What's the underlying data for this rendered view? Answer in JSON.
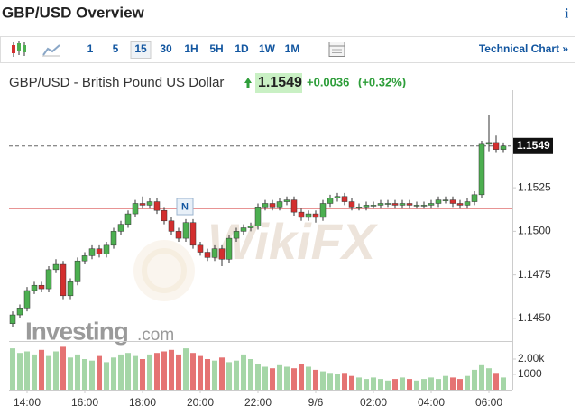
{
  "header": {
    "title": "GBP/USD Overview",
    "info": "i"
  },
  "toolbar": {
    "intervals": [
      "1",
      "5",
      "15",
      "30",
      "1H",
      "5H",
      "1D",
      "1W",
      "1M"
    ],
    "selected": "15",
    "link": "Technical Chart »"
  },
  "quote": {
    "name": "GBP/USD - British Pound US Dollar",
    "change": "+0.0036",
    "change_pct": "(+0.32%)"
  },
  "watermark": {
    "brand": "Investing",
    "suffix": ".com",
    "partner": "WikiFX"
  },
  "chart_data": {
    "type": "candlestick",
    "categories": [
      null,
      null,
      "14:00",
      null,
      null,
      null,
      null,
      null,
      null,
      null,
      "16:00",
      null,
      null,
      null,
      null,
      null,
      null,
      null,
      "18:00",
      null,
      null,
      null,
      null,
      null,
      null,
      null,
      "20:00",
      null,
      null,
      null,
      null,
      null,
      null,
      null,
      "22:00",
      null,
      null,
      null,
      null,
      null,
      null,
      null,
      "9/6",
      null,
      null,
      null,
      null,
      null,
      null,
      null,
      "02:00",
      null,
      null,
      null,
      null,
      null,
      null,
      null,
      "04:00",
      null,
      null,
      null,
      null,
      null,
      null,
      null,
      "06:00",
      null,
      null
    ],
    "open": [
      1.1447,
      1.1452,
      1.1456,
      1.1466,
      1.1469,
      1.1467,
      1.1478,
      1.1481,
      1.1463,
      1.1471,
      1.1483,
      1.1486,
      1.149,
      1.1487,
      1.1492,
      1.15,
      1.1504,
      1.151,
      1.1516,
      1.1515,
      1.1517,
      1.1512,
      1.1506,
      1.15,
      1.1496,
      1.1505,
      1.1492,
      1.1488,
      1.1485,
      1.149,
      1.1484,
      1.1496,
      1.15,
      1.1502,
      1.1503,
      1.1514,
      1.1516,
      1.1514,
      1.1517,
      1.1518,
      1.1511,
      1.1508,
      1.151,
      1.1508,
      1.1516,
      1.1519,
      1.152,
      1.1517,
      1.1514,
      1.1514,
      1.1515,
      1.1515,
      1.1516,
      1.1516,
      1.1515,
      1.1516,
      1.1515,
      1.1515,
      1.1515,
      1.1516,
      1.1518,
      1.1518,
      1.1516,
      1.1515,
      1.1517,
      1.1521,
      1.155,
      1.1551,
      1.1547
    ],
    "high": [
      1.1454,
      1.1458,
      1.1468,
      1.1471,
      1.1471,
      1.148,
      1.1484,
      1.1483,
      1.1473,
      1.1485,
      1.1488,
      1.1492,
      1.1492,
      1.1494,
      1.1502,
      1.1506,
      1.1512,
      1.1518,
      1.152,
      1.1519,
      1.1519,
      1.1514,
      1.1508,
      1.1502,
      1.1507,
      1.1507,
      1.1494,
      1.149,
      1.1492,
      1.1492,
      1.1498,
      1.1502,
      1.1504,
      1.1505,
      1.1516,
      1.1518,
      1.1518,
      1.1519,
      1.152,
      1.152,
      1.1513,
      1.1512,
      1.1512,
      1.1518,
      1.1521,
      1.1522,
      1.1522,
      1.1519,
      1.1516,
      1.1517,
      1.1517,
      1.1518,
      1.1518,
      1.1518,
      1.1518,
      1.1518,
      1.1517,
      1.1517,
      1.1518,
      1.152,
      1.152,
      1.152,
      1.1518,
      1.1519,
      1.1523,
      1.1552,
      1.1567,
      1.1555,
      1.1551
    ],
    "low": [
      1.1445,
      1.145,
      1.1454,
      1.1464,
      1.1465,
      1.1465,
      1.1476,
      1.1461,
      1.1461,
      1.1469,
      1.1481,
      1.1484,
      1.1485,
      1.1485,
      1.149,
      1.1498,
      1.1502,
      1.1508,
      1.1513,
      1.1513,
      1.151,
      1.1504,
      1.1498,
      1.1494,
      1.1494,
      1.149,
      1.1486,
      1.1483,
      1.1483,
      1.148,
      1.1482,
      1.1494,
      1.1498,
      1.15,
      1.1501,
      1.1512,
      1.1512,
      1.1512,
      1.1515,
      1.1509,
      1.1506,
      1.1506,
      1.1505,
      1.1506,
      1.1514,
      1.1517,
      1.1515,
      1.1512,
      1.1512,
      1.1512,
      1.1513,
      1.1513,
      1.1514,
      1.1513,
      1.1513,
      1.1513,
      1.1513,
      1.1513,
      1.1513,
      1.1514,
      1.1516,
      1.1514,
      1.1513,
      1.1513,
      1.1515,
      1.1519,
      1.1546,
      1.1545,
      1.1545
    ],
    "close": [
      1.1452,
      1.1456,
      1.1466,
      1.1469,
      1.1467,
      1.1478,
      1.1481,
      1.1463,
      1.1471,
      1.1483,
      1.1486,
      1.149,
      1.1487,
      1.1492,
      1.15,
      1.1504,
      1.151,
      1.1516,
      1.1515,
      1.1517,
      1.1512,
      1.1506,
      1.15,
      1.1496,
      1.1505,
      1.1492,
      1.1488,
      1.1485,
      1.149,
      1.1484,
      1.1496,
      1.15,
      1.1502,
      1.1503,
      1.1514,
      1.1516,
      1.1514,
      1.1517,
      1.1518,
      1.1511,
      1.1508,
      1.151,
      1.1508,
      1.1516,
      1.1519,
      1.152,
      1.1517,
      1.1514,
      1.1514,
      1.1515,
      1.1515,
      1.1516,
      1.1516,
      1.1515,
      1.1516,
      1.1515,
      1.1515,
      1.1515,
      1.1516,
      1.1518,
      1.1518,
      1.1516,
      1.1515,
      1.1517,
      1.1521,
      1.155,
      1.1551,
      1.1547,
      1.1549
    ],
    "volume": [
      2700,
      2400,
      2500,
      2300,
      2600,
      2200,
      2500,
      2800,
      2100,
      2300,
      2000,
      1900,
      2200,
      1800,
      2100,
      2300,
      2400,
      2200,
      2000,
      2300,
      2400,
      2500,
      2600,
      2300,
      2700,
      2400,
      2200,
      2000,
      1900,
      2100,
      1800,
      1900,
      2300,
      2000,
      1700,
      1500,
      1400,
      1600,
      1500,
      1400,
      1700,
      1500,
      1300,
      1200,
      1100,
      1000,
      1100,
      900,
      800,
      700,
      800,
      700,
      600,
      700,
      800,
      700,
      600,
      700,
      800,
      700,
      900,
      800,
      700,
      900,
      1300,
      1600,
      1400,
      1100,
      800
    ],
    "up_color": "#4caf50",
    "down_color": "#d32f2f",
    "up_volume_color": "#a5d6a7",
    "down_volume_color": "#e57373",
    "ylim": [
      1.1437,
      1.1581
    ],
    "yticks": [
      {
        "value": 1.145,
        "label": "1.1450"
      },
      1.1475,
      {
        "value": 1.15,
        "label": "1.1500"
      },
      1.1525
    ],
    "volume_ylim": [
      0,
      3000
    ],
    "volume_yticks": [
      {
        "value": 2000,
        "label": "2.00k"
      },
      1000
    ],
    "last_price": 1.1549,
    "prev_close": 1.1513,
    "news_label": "N"
  }
}
